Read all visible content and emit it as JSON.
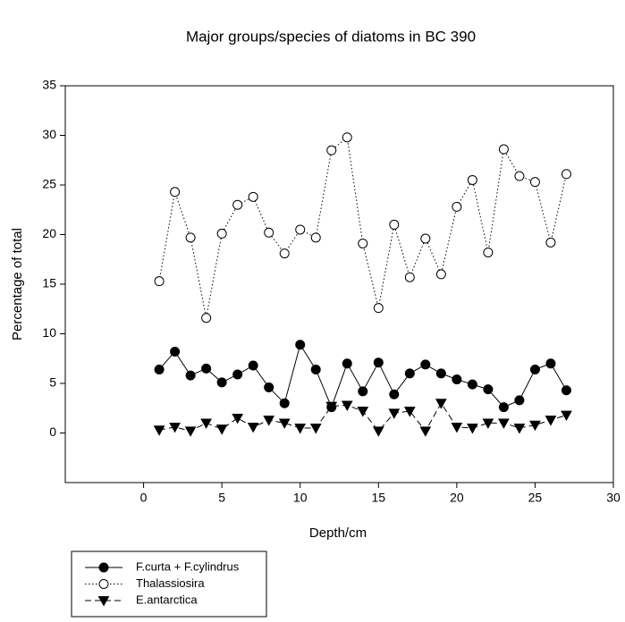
{
  "chart_data": {
    "type": "line",
    "title": "Major groups/species of diatoms in BC 390",
    "xlabel": "Depth/cm",
    "ylabel": "Percentage of total",
    "x": [
      1,
      2,
      3,
      4,
      5,
      6,
      7,
      8,
      9,
      10,
      11,
      12,
      13,
      14,
      15,
      16,
      17,
      18,
      19,
      20,
      21,
      22,
      23,
      24,
      25,
      26,
      27
    ],
    "series": [
      {
        "name": "F.curta + F.cylindrus",
        "color": "#000000",
        "marker": "circle-filled",
        "dash": "solid",
        "values": [
          6.4,
          8.2,
          5.8,
          6.5,
          5.1,
          5.9,
          6.8,
          4.6,
          3.0,
          8.9,
          6.4,
          2.6,
          7.0,
          4.2,
          7.1,
          3.9,
          6.0,
          6.9,
          6.0,
          5.4,
          4.9,
          4.4,
          2.6,
          3.3,
          6.4,
          7.0,
          4.3
        ]
      },
      {
        "name": "Thalassiosira",
        "color": "#000000",
        "marker": "circle-open",
        "dash": "dotted",
        "values": [
          15.3,
          24.3,
          19.7,
          11.6,
          20.1,
          23.0,
          23.8,
          20.2,
          18.1,
          20.5,
          19.7,
          28.5,
          29.8,
          19.1,
          12.6,
          21.0,
          15.7,
          19.6,
          16.0,
          22.8,
          25.5,
          18.2,
          28.6,
          25.9,
          25.3,
          19.2,
          26.1
        ]
      },
      {
        "name": "E.antarctica",
        "color": "#000000",
        "marker": "triangle-down",
        "dash": "dashed",
        "values": [
          0.3,
          0.6,
          0.2,
          1.0,
          0.4,
          1.5,
          0.6,
          1.3,
          1.0,
          0.5,
          0.5,
          2.7,
          2.8,
          2.2,
          0.2,
          2.0,
          2.2,
          0.2,
          3.0,
          0.6,
          0.5,
          1.0,
          1.0,
          0.5,
          0.8,
          1.3,
          1.8
        ]
      }
    ],
    "xlim": [
      -5,
      30
    ],
    "xticks": [
      0,
      5,
      10,
      15,
      20,
      25,
      30
    ],
    "ylim": [
      -5,
      35
    ],
    "yticks": [
      0,
      5,
      10,
      15,
      20,
      25,
      30,
      35
    ],
    "legend": "bottom-left"
  }
}
